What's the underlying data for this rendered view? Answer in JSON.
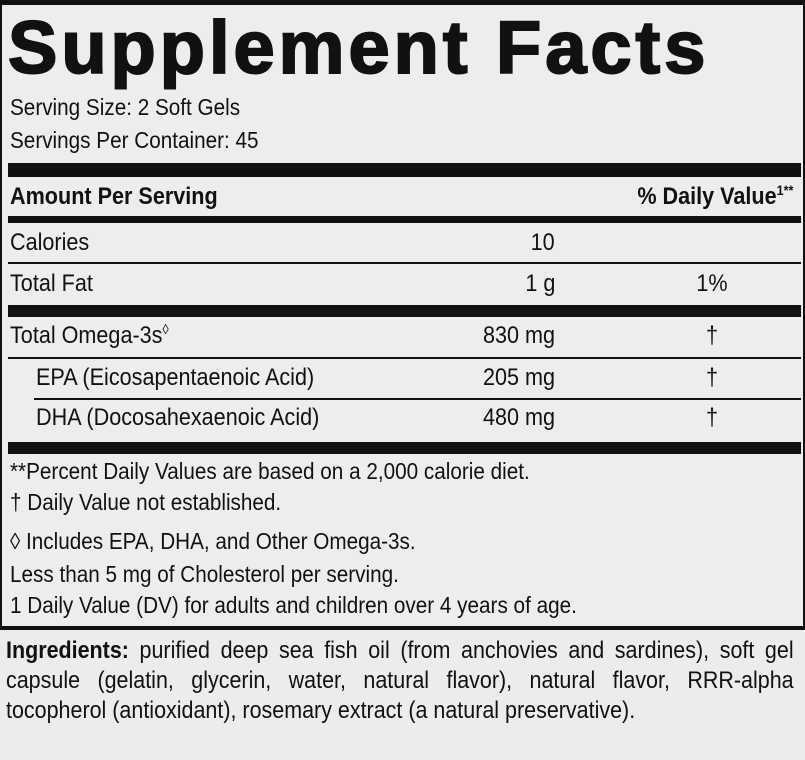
{
  "title": "Supplement Facts",
  "serving_size": "Serving Size: 2 Soft Gels",
  "servings_per_container": "Servings Per Container: 45",
  "header": {
    "amount": "Amount Per Serving",
    "daily_value": "% Daily Value",
    "daily_value_sup": "1**"
  },
  "rows": [
    {
      "name": "Calories",
      "amount": "10",
      "dv": ""
    },
    {
      "name": "Total Fat",
      "amount": "1 g",
      "dv": "1%"
    },
    {
      "name": "Total Omega-3s",
      "name_sup": "◊",
      "amount": "830 mg",
      "dv": "†"
    },
    {
      "name": "EPA (Eicosapentaenoic Acid)",
      "amount": "205 mg",
      "dv": "†"
    },
    {
      "name": "DHA (Docosahexaenoic Acid)",
      "amount": "480 mg",
      "dv": "†"
    }
  ],
  "footnotes": [
    "**Percent Daily Values are based on a 2,000 calorie diet.",
    "† Daily Value not established.",
    "◊ Includes EPA, DHA, and Other Omega-3s.",
    "Less than 5 mg of Cholesterol per serving.",
    "1 Daily Value (DV) for adults and children over 4 years of age."
  ],
  "ingredients": {
    "label": "Ingredients:",
    "text": " purified deep sea fish oil (from anchovies and sardines), soft gel capsule (gelatin, glycerin, water, natural flavor), natural flavor, RRR-alpha tocopherol (antioxidant), rosemary extract (a natural preservative)."
  }
}
